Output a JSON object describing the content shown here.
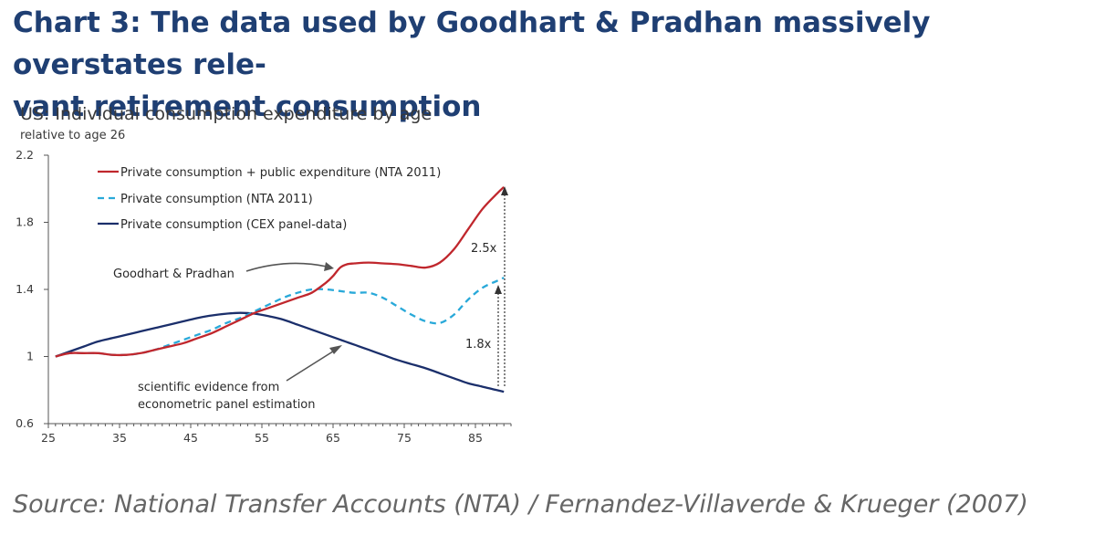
{
  "page": {
    "title": "Chart 3: The data used by Goodhart & Pradhan massively overstates relevant retirement consumption",
    "title_line1": "Chart 3: The data used by Goodhart & Pradhan massively overstates rele-",
    "title_line2": "vant retirement consumption",
    "source": "Source: National Transfer Accounts (NTA) / Fernandez-Villaverde & Krueger (2007)"
  },
  "chart_data": {
    "type": "line",
    "title": "US: Individual consumption expenditure by age",
    "subtitle": "relative to age 26",
    "xlabel": "",
    "ylabel": "",
    "xlim": [
      25,
      90
    ],
    "ylim": [
      0.6,
      2.2
    ],
    "x_ticks": [
      25,
      35,
      45,
      55,
      65,
      75,
      85
    ],
    "y_ticks": [
      0.6,
      1,
      1.4,
      1.8,
      2.2
    ],
    "y_tick_labels": [
      "0.6",
      "1",
      "1.4",
      "1.8",
      "2.2"
    ],
    "grid": false,
    "legend_position": "top-left",
    "series": [
      {
        "name": "Private consumption + public expenditure (NTA 2011)",
        "color": "#c0272d",
        "style": "solid",
        "x": [
          26,
          28,
          30,
          32,
          34,
          36,
          38,
          40,
          42,
          44,
          46,
          48,
          50,
          52,
          54,
          56,
          58,
          60,
          62,
          64,
          65,
          66,
          67,
          68,
          70,
          72,
          74,
          76,
          78,
          80,
          82,
          84,
          86,
          88,
          89
        ],
        "values": [
          1.0,
          1.02,
          1.02,
          1.02,
          1.01,
          1.01,
          1.02,
          1.04,
          1.06,
          1.08,
          1.11,
          1.14,
          1.18,
          1.22,
          1.26,
          1.29,
          1.32,
          1.35,
          1.38,
          1.44,
          1.48,
          1.53,
          1.55,
          1.555,
          1.56,
          1.555,
          1.55,
          1.54,
          1.53,
          1.56,
          1.64,
          1.76,
          1.88,
          1.97,
          2.01
        ]
      },
      {
        "name": "Private consumption (NTA 2011)",
        "color": "#29a9d9",
        "style": "dashed",
        "x": [
          26,
          28,
          30,
          32,
          34,
          36,
          38,
          40,
          42,
          44,
          46,
          48,
          50,
          52,
          54,
          56,
          58,
          60,
          62,
          64,
          66,
          68,
          70,
          72,
          74,
          76,
          78,
          80,
          82,
          84,
          86,
          88,
          89
        ],
        "values": [
          1.0,
          1.02,
          1.02,
          1.02,
          1.01,
          1.01,
          1.02,
          1.04,
          1.07,
          1.1,
          1.13,
          1.16,
          1.2,
          1.23,
          1.27,
          1.31,
          1.35,
          1.38,
          1.4,
          1.4,
          1.39,
          1.38,
          1.38,
          1.35,
          1.3,
          1.25,
          1.21,
          1.2,
          1.25,
          1.34,
          1.41,
          1.45,
          1.47
        ]
      },
      {
        "name": "Private consumption (CEX panel-data)",
        "color": "#1b2f6b",
        "style": "solid",
        "x": [
          26,
          28,
          30,
          32,
          34,
          36,
          38,
          40,
          42,
          44,
          46,
          48,
          50,
          52,
          54,
          56,
          58,
          60,
          62,
          64,
          66,
          68,
          70,
          72,
          74,
          76,
          78,
          80,
          82,
          84,
          86,
          88,
          89
        ],
        "values": [
          1.0,
          1.03,
          1.06,
          1.09,
          1.11,
          1.13,
          1.15,
          1.17,
          1.19,
          1.21,
          1.23,
          1.245,
          1.255,
          1.26,
          1.255,
          1.24,
          1.22,
          1.19,
          1.16,
          1.13,
          1.1,
          1.07,
          1.04,
          1.01,
          0.98,
          0.955,
          0.93,
          0.9,
          0.87,
          0.84,
          0.82,
          0.8,
          0.79
        ]
      }
    ],
    "annotations": {
      "goodhart_label": "Goodhart & Pradhan",
      "scientific_line1": "scientific evidence from",
      "scientific_line2": "econometric panel estimation",
      "ratio_red": "2.5x",
      "ratio_dashed": "1.8x"
    }
  }
}
